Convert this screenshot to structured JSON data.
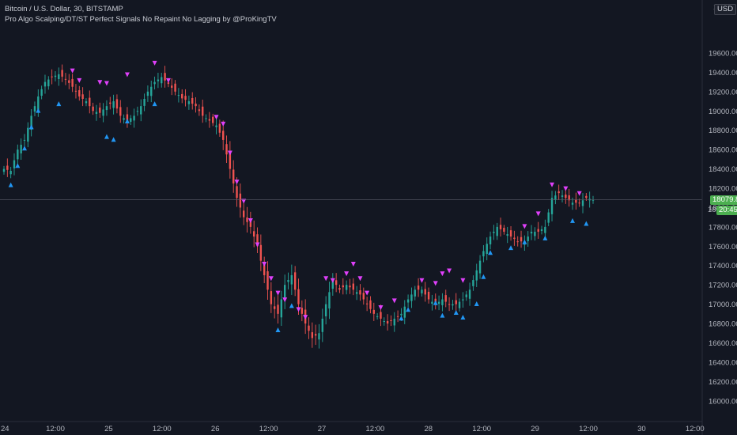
{
  "chart_data": {
    "type": "candlestick",
    "title": "Bitcoin / U.S. Dollar, 30, BITSTAMP",
    "subtitle": "Pro Algo Scalping/DT/ST Perfect Signals No Repaint No Lagging by @ProKingTV",
    "currency": "USD",
    "ylim": [
      15900,
      20050
    ],
    "yticks": [
      16000,
      16200,
      16400,
      16600,
      16800,
      17000,
      17200,
      17400,
      17600,
      17800,
      18000,
      18200,
      18400,
      18600,
      18800,
      19000,
      19200,
      19400,
      19600
    ],
    "ytick_labels": [
      "16000.00",
      "16200.00",
      "16400.00",
      "16600.00",
      "16800.00",
      "17000.00",
      "17200.00",
      "17400.00",
      "17600.00",
      "17800.00",
      "18000.00",
      "18200.00",
      "18400.00",
      "18600.00",
      "18800.00",
      "19000.00",
      "19200.00",
      "19400.00",
      "19600.00"
    ],
    "ytick_partial_top": "1",
    "xtick_labels": [
      "24",
      "12:00",
      "25",
      "12:00",
      "26",
      "12:00",
      "27",
      "12:00",
      "28",
      "12:00",
      "29",
      "12:00",
      "30",
      "12:00"
    ],
    "last_price": 18079.86,
    "last_price_label": "18079.86",
    "countdown_label": "20:45",
    "countdown_partial_label": "18",
    "colors": {
      "background": "#131722",
      "up": "#26a69a",
      "down": "#ef5350",
      "buy_signal": "#2196f3",
      "sell_signal": "#e040fb",
      "price_badge": "#4caf50"
    },
    "anchors": [
      [
        0,
        18400
      ],
      [
        2,
        18380
      ],
      [
        4,
        18600
      ],
      [
        6,
        18700
      ],
      [
        8,
        18950
      ],
      [
        10,
        19150
      ],
      [
        12,
        19300
      ],
      [
        14,
        19350
      ],
      [
        16,
        19380
      ],
      [
        18,
        19330
      ],
      [
        20,
        19250
      ],
      [
        22,
        19150
      ],
      [
        24,
        19100
      ],
      [
        26,
        19000
      ],
      [
        28,
        18980
      ],
      [
        30,
        19050
      ],
      [
        32,
        19100
      ],
      [
        34,
        18950
      ],
      [
        36,
        18900
      ],
      [
        38,
        18950
      ],
      [
        40,
        19050
      ],
      [
        42,
        19200
      ],
      [
        44,
        19300
      ],
      [
        46,
        19350
      ],
      [
        48,
        19280
      ],
      [
        50,
        19200
      ],
      [
        52,
        19130
      ],
      [
        54,
        19100
      ],
      [
        56,
        19050
      ],
      [
        58,
        18950
      ],
      [
        60,
        18900
      ],
      [
        62,
        18850
      ],
      [
        64,
        18700
      ],
      [
        66,
        18400
      ],
      [
        68,
        18100
      ],
      [
        70,
        17900
      ],
      [
        72,
        17800
      ],
      [
        74,
        17600
      ],
      [
        76,
        17300
      ],
      [
        78,
        17000
      ],
      [
        80,
        16900
      ],
      [
        82,
        17200
      ],
      [
        84,
        17300
      ],
      [
        86,
        17000
      ],
      [
        88,
        16800
      ],
      [
        90,
        16650
      ],
      [
        92,
        16700
      ],
      [
        94,
        17000
      ],
      [
        96,
        17250
      ],
      [
        98,
        17150
      ],
      [
        100,
        17200
      ],
      [
        102,
        17150
      ],
      [
        104,
        17100
      ],
      [
        106,
        17000
      ],
      [
        108,
        16900
      ],
      [
        110,
        16850
      ],
      [
        112,
        16800
      ],
      [
        114,
        16850
      ],
      [
        116,
        16900
      ],
      [
        118,
        17050
      ],
      [
        120,
        17150
      ],
      [
        122,
        17150
      ],
      [
        124,
        17050
      ],
      [
        126,
        17000
      ],
      [
        128,
        17050
      ],
      [
        130,
        17000
      ],
      [
        132,
        17000
      ],
      [
        134,
        17050
      ],
      [
        136,
        17150
      ],
      [
        138,
        17350
      ],
      [
        140,
        17550
      ],
      [
        142,
        17700
      ],
      [
        144,
        17800
      ],
      [
        146,
        17750
      ],
      [
        148,
        17700
      ],
      [
        150,
        17650
      ],
      [
        152,
        17650
      ],
      [
        154,
        17750
      ],
      [
        156,
        17750
      ],
      [
        158,
        17800
      ],
      [
        160,
        18100
      ],
      [
        162,
        18150
      ],
      [
        164,
        18100
      ],
      [
        166,
        18050
      ],
      [
        168,
        18050
      ],
      [
        170,
        18100
      ],
      [
        172,
        18080
      ]
    ],
    "buy_signals": [
      [
        2,
        18350
      ],
      [
        4,
        18550
      ],
      [
        6,
        18730
      ],
      [
        8,
        18950
      ],
      [
        10,
        19120
      ],
      [
        16,
        19190
      ],
      [
        30,
        18850
      ],
      [
        32,
        18820
      ],
      [
        36,
        19010
      ],
      [
        44,
        19190
      ],
      [
        80,
        16850
      ],
      [
        84,
        17100
      ],
      [
        116,
        16970
      ],
      [
        118,
        17060
      ],
      [
        126,
        17130
      ],
      [
        128,
        17000
      ],
      [
        132,
        17030
      ],
      [
        134,
        16980
      ],
      [
        138,
        17120
      ],
      [
        140,
        17400
      ],
      [
        142,
        17650
      ],
      [
        148,
        17700
      ],
      [
        152,
        17760
      ],
      [
        158,
        17800
      ],
      [
        166,
        17980
      ],
      [
        170,
        17950
      ]
    ],
    "sell_signals": [
      [
        20,
        19300
      ],
      [
        22,
        19200
      ],
      [
        28,
        19180
      ],
      [
        30,
        19170
      ],
      [
        36,
        19260
      ],
      [
        44,
        19380
      ],
      [
        48,
        19200
      ],
      [
        62,
        18820
      ],
      [
        64,
        18750
      ],
      [
        66,
        18450
      ],
      [
        68,
        18150
      ],
      [
        70,
        17950
      ],
      [
        72,
        17750
      ],
      [
        74,
        17500
      ],
      [
        76,
        17300
      ],
      [
        78,
        17150
      ],
      [
        80,
        17000
      ],
      [
        82,
        16930
      ],
      [
        86,
        16830
      ],
      [
        88,
        16750
      ],
      [
        94,
        17150
      ],
      [
        96,
        17130
      ],
      [
        100,
        17200
      ],
      [
        102,
        17300
      ],
      [
        104,
        17150
      ],
      [
        106,
        17000
      ],
      [
        110,
        16850
      ],
      [
        114,
        16920
      ],
      [
        122,
        17130
      ],
      [
        126,
        17100
      ],
      [
        128,
        17200
      ],
      [
        130,
        17230
      ],
      [
        134,
        17130
      ],
      [
        152,
        17690
      ],
      [
        156,
        17820
      ],
      [
        160,
        18120
      ],
      [
        164,
        18080
      ],
      [
        168,
        18030
      ]
    ]
  }
}
